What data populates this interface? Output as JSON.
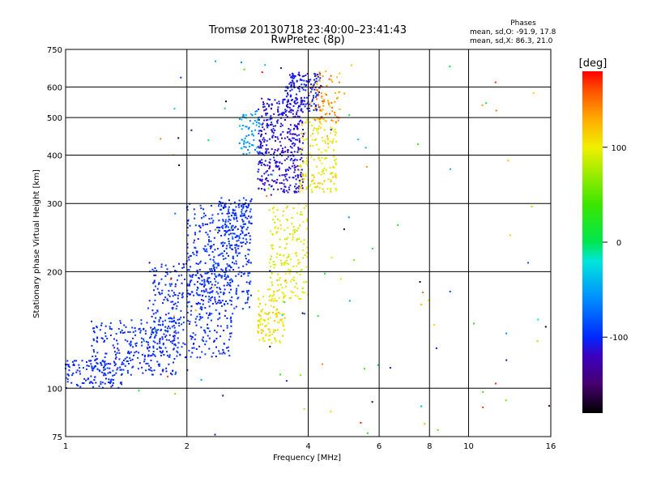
{
  "chart_data": {
    "type": "scatter",
    "title": "Tromsø 20130718 23:40:00–23:41:43",
    "subtitle": "RwPretec (8p)",
    "xlabel": "Frequency [MHz]",
    "ylabel": "Stationary phase Virtual Height [km]",
    "x_scale": "log",
    "y_scale": "log",
    "xlim": [
      1,
      16
    ],
    "ylim": [
      75,
      750
    ],
    "x_ticks": [
      1,
      2,
      4,
      6,
      8,
      10,
      16
    ],
    "y_ticks": [
      75,
      100,
      200,
      300,
      400,
      500,
      600,
      750
    ],
    "grid": true,
    "phases_box": {
      "title": "Phases",
      "line1": "mean, sd,O: -91.9, 17.8",
      "line2": "mean, sd,X:  86.3, 21.0"
    },
    "colorbar": {
      "label": "[deg]",
      "range": [
        -180,
        180
      ],
      "ticks": [
        100,
        0,
        -100
      ]
    },
    "clusters": [
      {
        "x": [
          1.0,
          1.4
        ],
        "y": [
          100,
          118
        ],
        "phase": [
          -108,
          -92
        ],
        "n": 120
      },
      {
        "x": [
          1.15,
          1.9
        ],
        "y": [
          108,
          150
        ],
        "phase": [
          -110,
          -90
        ],
        "n": 260
      },
      {
        "x": [
          1.6,
          2.6
        ],
        "y": [
          120,
          210
        ],
        "phase": [
          -112,
          -88
        ],
        "n": 380
      },
      {
        "x": [
          2.0,
          2.9
        ],
        "y": [
          160,
          300
        ],
        "phase": [
          -110,
          -85
        ],
        "n": 360
      },
      {
        "x": [
          2.4,
          2.9
        ],
        "y": [
          230,
          310
        ],
        "phase": [
          -105,
          -90
        ],
        "n": 120
      },
      {
        "x": [
          2.7,
          3.05
        ],
        "y": [
          400,
          520
        ],
        "phase": [
          -80,
          -30
        ],
        "n": 70
      },
      {
        "x": [
          3.0,
          3.9
        ],
        "y": [
          320,
          560
        ],
        "phase": [
          -125,
          -100
        ],
        "n": 420
      },
      {
        "x": [
          3.5,
          4.3
        ],
        "y": [
          520,
          650
        ],
        "phase": [
          -120,
          -95
        ],
        "n": 160
      },
      {
        "x": [
          3.0,
          3.5
        ],
        "y": [
          130,
          180
        ],
        "phase": [
          90,
          120
        ],
        "n": 120
      },
      {
        "x": [
          3.2,
          4.0
        ],
        "y": [
          170,
          300
        ],
        "phase": [
          75,
          115
        ],
        "n": 170
      },
      {
        "x": [
          3.8,
          4.7
        ],
        "y": [
          320,
          500
        ],
        "phase": [
          85,
          125
        ],
        "n": 180
      },
      {
        "x": [
          4.0,
          4.8
        ],
        "y": [
          480,
          660
        ],
        "phase": [
          110,
          160
        ],
        "n": 80
      },
      {
        "x": [
          1.5,
          16.0
        ],
        "y": [
          75,
          700
        ],
        "phase": [
          -180,
          180
        ],
        "n": 110
      }
    ]
  }
}
